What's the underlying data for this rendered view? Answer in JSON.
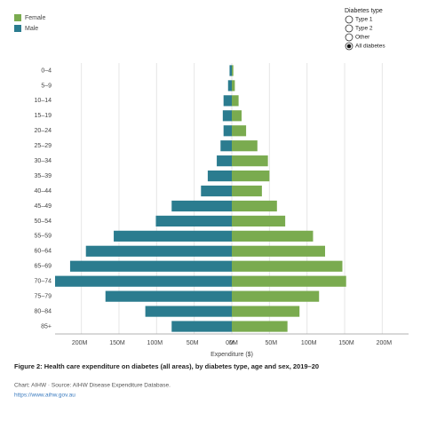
{
  "chart_data": {
    "type": "pyramid",
    "title": "Figure 2: Health care expenditure on diabetes (all areas), by diabetes type, age and sex, 2019–20",
    "source": "Chart: AIHW · Source: AIHW Disease Expenditure Database.",
    "link": "https://www.aihw.gov.au",
    "x_label": "Expenditure ($)",
    "filter": {
      "title": "Diabetes type",
      "options": [
        "Type 1",
        "Type 2",
        "Other",
        "All diabetes"
      ],
      "selected": 3
    },
    "categories": [
      "0–4",
      "5–9",
      "10–14",
      "15–19",
      "20–24",
      "25–29",
      "30–34",
      "35–39",
      "40–44",
      "45–49",
      "50–54",
      "55–59",
      "60–64",
      "65–69",
      "70–74",
      "75–79",
      "80–84",
      "85+"
    ],
    "series": [
      {
        "name": "Female",
        "color": "#7aab4f",
        "side": "right",
        "values": [
          2,
          4,
          9,
          13,
          19,
          34,
          48,
          50,
          40,
          60,
          71,
          108,
          124,
          147,
          152,
          116,
          90,
          74
        ]
      },
      {
        "name": "Male",
        "color": "#2b7c8f",
        "side": "left",
        "values": [
          3,
          5,
          11,
          12,
          11,
          15,
          20,
          32,
          41,
          80,
          101,
          157,
          194,
          215,
          235,
          168,
          115,
          80
        ]
      }
    ],
    "xlim": [
      0,
      235
    ],
    "xticks": [
      {
        "value": 200,
        "label": "200M"
      },
      {
        "value": 150,
        "label": "150M"
      },
      {
        "value": 100,
        "label": "100M"
      },
      {
        "value": 50,
        "label": "50M"
      },
      {
        "value": 0,
        "label": "0M"
      }
    ]
  }
}
